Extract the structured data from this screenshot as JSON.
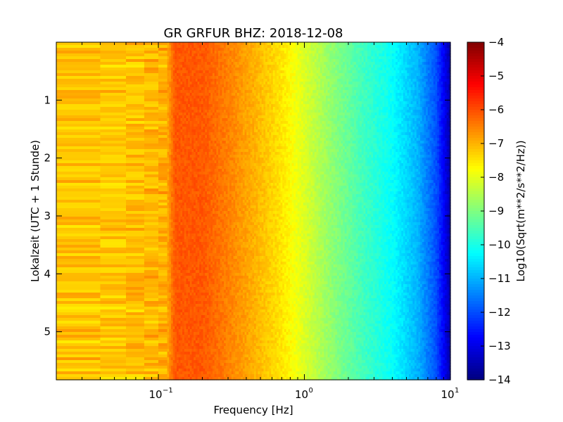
{
  "chart_data": {
    "type": "heatmap",
    "title": "GR GRFUR BHZ: 2018-12-08",
    "xlabel": "Frequency [Hz]",
    "ylabel": "Lokalzeit (UTC + 1 Stunde)",
    "x_scale": "log",
    "xlim": [
      0.02,
      10
    ],
    "y_inverted": true,
    "ylim": [
      0,
      5.83
    ],
    "x_ticks": [
      {
        "base": "10",
        "exp": "−1"
      },
      {
        "base": "10",
        "exp": "0"
      },
      {
        "base": "10",
        "exp": "1"
      }
    ],
    "y_ticks": [
      "1",
      "2",
      "3",
      "4",
      "5"
    ],
    "colorbar": {
      "label": "Log10(Sqrt(m**2/s**2/Hz))",
      "range": [
        -14,
        -4
      ],
      "ticks": [
        "−4",
        "−5",
        "−6",
        "−7",
        "−8",
        "−9",
        "−10",
        "−11",
        "−12",
        "−13",
        "−14"
      ],
      "colormap": "jet"
    },
    "spectrum_profile": {
      "description_freq_hz": [
        0.02,
        0.05,
        0.1,
        0.115,
        0.13,
        0.2,
        0.3,
        0.5,
        0.7,
        1.0,
        1.5,
        2.5,
        4.0,
        6.0,
        8.0,
        9.0,
        10.0
      ],
      "log10_amplitude": [
        -7.1,
        -7.2,
        -7.0,
        -6.9,
        -6.1,
        -6.1,
        -6.5,
        -7.1,
        -7.5,
        -8.1,
        -8.8,
        -9.6,
        -10.2,
        -11.0,
        -12.0,
        -12.8,
        -13.6
      ]
    }
  }
}
